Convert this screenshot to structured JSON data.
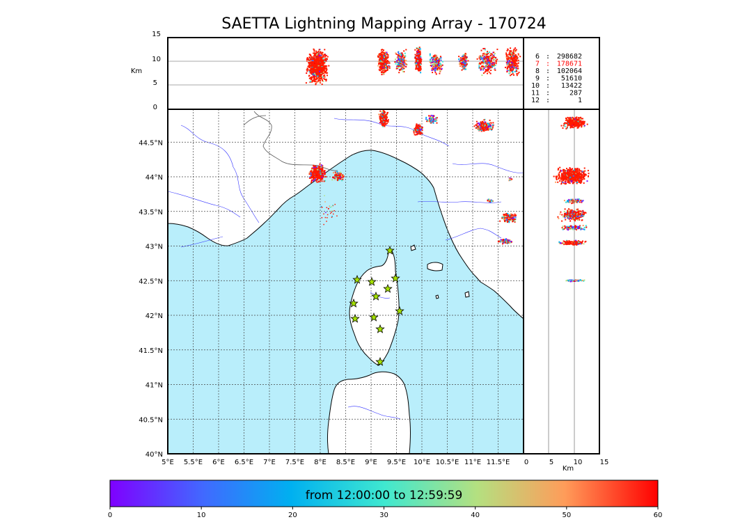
{
  "title": "SAETTA Lightning Mapping Array - 170724",
  "top_panel": {
    "ylabel": "Km",
    "yticks": [
      "15",
      "10",
      "5",
      "0"
    ],
    "gridlines_km": [
      10,
      5
    ]
  },
  "side_panel": {
    "xlabel": "Km",
    "xticks": [
      "0",
      "5",
      "10",
      "15"
    ]
  },
  "map": {
    "lat_ticks": [
      "44.5°N",
      "44°N",
      "43.5°N",
      "43°N",
      "42.5°N",
      "42°N",
      "41.5°N",
      "41°N",
      "40.5°N",
      "40°N"
    ],
    "lon_ticks": [
      "5°E",
      "5.5°E",
      "6°E",
      "6.5°E",
      "7°E",
      "7.5°E",
      "8°E",
      "8.5°E",
      "9°E",
      "9.5°E",
      "10°E",
      "10.5°E",
      "11°E",
      "11.5°E"
    ],
    "extent": {
      "lon": [
        5,
        12
      ],
      "lat": [
        40,
        45
      ]
    },
    "sea_color": "#b9eefb",
    "grid": "dotted",
    "stations_icon": "star-icon",
    "station_count": 12
  },
  "counts": [
    {
      "n": "6",
      "value": "298682",
      "color": "#000000"
    },
    {
      "n": "7",
      "value": "178671",
      "color": "#ff0000"
    },
    {
      "n": "8",
      "value": "102064",
      "color": "#000000"
    },
    {
      "n": "9",
      "value": "51610",
      "color": "#000000"
    },
    {
      "n": "10",
      "value": "13422",
      "color": "#000000"
    },
    {
      "n": "11",
      "value": "287",
      "color": "#000000"
    },
    {
      "n": "12",
      "value": "1",
      "color": "#000000"
    }
  ],
  "colorbar": {
    "label": "from 12:00:00 to 12:59:59",
    "ticks": [
      "0",
      "10",
      "20",
      "30",
      "40",
      "50",
      "60"
    ],
    "range": [
      0,
      60
    ],
    "colormap": "rainbow"
  }
}
